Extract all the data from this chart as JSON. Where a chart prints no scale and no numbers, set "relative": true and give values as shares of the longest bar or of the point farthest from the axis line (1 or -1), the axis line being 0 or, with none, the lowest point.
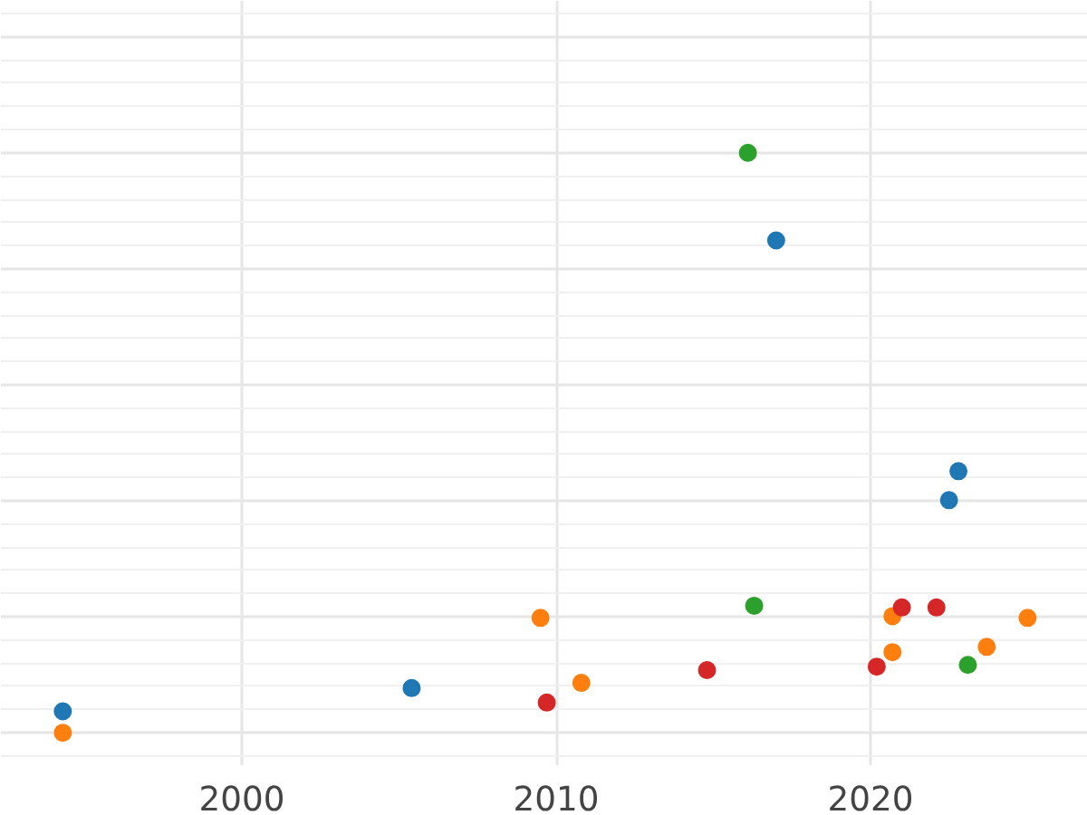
{
  "chart_data": {
    "type": "scatter",
    "relative": true,
    "xlim": [
      1992.33,
      2026.92
    ],
    "xticks": [
      2000,
      2010,
      2020
    ],
    "grid": true,
    "marker": "circle",
    "series": [
      {
        "color": "#1f77b4",
        "x": [
          1994.3,
          2005.4,
          2017.0,
          2022.8,
          2022.5
        ],
        "values": [
          0.037,
          0.077,
          0.849,
          0.451,
          0.401
        ]
      },
      {
        "color": "#ff7f0e",
        "x": [
          1994.3,
          2009.5,
          2010.8,
          2020.7,
          2020.7,
          2023.7,
          2025.0
        ],
        "values": [
          0,
          0.198,
          0.086,
          0.201,
          0.139,
          0.148,
          0.198
        ]
      },
      {
        "color": "#2ca02c",
        "x": [
          2016.1,
          2016.3,
          2023.1
        ],
        "values": [
          1,
          0.219,
          0.117
        ]
      },
      {
        "color": "#d62728",
        "x": [
          2009.7,
          2014.8,
          2020.2,
          2021.0,
          2022.1
        ],
        "values": [
          0.052,
          0.108,
          0.114,
          0.216,
          0.216
        ]
      }
    ]
  }
}
